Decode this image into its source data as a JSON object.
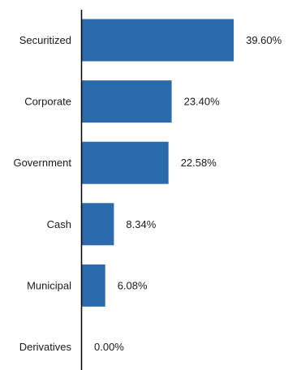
{
  "chart_data": {
    "type": "bar",
    "orientation": "horizontal",
    "categories": [
      "Securitized",
      "Corporate",
      "Government",
      "Cash",
      "Municipal",
      "Derivatives"
    ],
    "values": [
      39.6,
      23.4,
      22.58,
      8.34,
      6.08,
      0.0
    ],
    "value_labels": [
      "39.60%",
      "23.40%",
      "22.58%",
      "8.34%",
      "6.08%",
      "0.00%"
    ],
    "title": "",
    "xlabel": "",
    "ylabel": "",
    "xlim": [
      0,
      40
    ],
    "grid": false,
    "legend": "none",
    "bar_color": "#2a6aad"
  }
}
